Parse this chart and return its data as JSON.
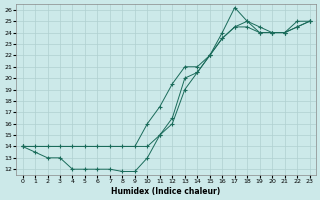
{
  "xlabel": "Humidex (Indice chaleur)",
  "bg_color": "#cce9e9",
  "grid_color": "#b0d0d0",
  "line_color": "#1a6b5a",
  "xlim": [
    -0.5,
    23.5
  ],
  "ylim": [
    11.5,
    26.5
  ],
  "xticks": [
    0,
    1,
    2,
    3,
    4,
    5,
    6,
    7,
    8,
    9,
    10,
    11,
    12,
    13,
    14,
    15,
    16,
    17,
    18,
    19,
    20,
    21,
    22,
    23
  ],
  "yticks": [
    12,
    13,
    14,
    15,
    16,
    17,
    18,
    19,
    20,
    21,
    22,
    23,
    24,
    25,
    26
  ],
  "line1_x": [
    0,
    1,
    2,
    3,
    4,
    5,
    6,
    7,
    8,
    9,
    10,
    11,
    12,
    13,
    14,
    15,
    16,
    17,
    18,
    19,
    20,
    21,
    22,
    23
  ],
  "line1_y": [
    14,
    13.5,
    13,
    13,
    12,
    12,
    12,
    12,
    11.8,
    11.8,
    13,
    15,
    16,
    19,
    20.5,
    22,
    24,
    26.2,
    25,
    24,
    24,
    24,
    24.5,
    25
  ],
  "line2_x": [
    0,
    1,
    2,
    3,
    4,
    5,
    6,
    7,
    8,
    9,
    10,
    11,
    12,
    13,
    14,
    15,
    16,
    17,
    18,
    19,
    20,
    21,
    22,
    23
  ],
  "line2_y": [
    14,
    14,
    14,
    14,
    14,
    14,
    14,
    14,
    14,
    14,
    16,
    17.5,
    19.5,
    21,
    21,
    22,
    23.5,
    24.5,
    24.5,
    24,
    24,
    24,
    24.5,
    25
  ],
  "line3_x": [
    0,
    10,
    11,
    12,
    13,
    14,
    15,
    16,
    17,
    18,
    19,
    20,
    21,
    22,
    23
  ],
  "line3_y": [
    14,
    14,
    15,
    16.5,
    20,
    20.5,
    22,
    23.5,
    24.5,
    25,
    24.5,
    24,
    24,
    25,
    25
  ]
}
